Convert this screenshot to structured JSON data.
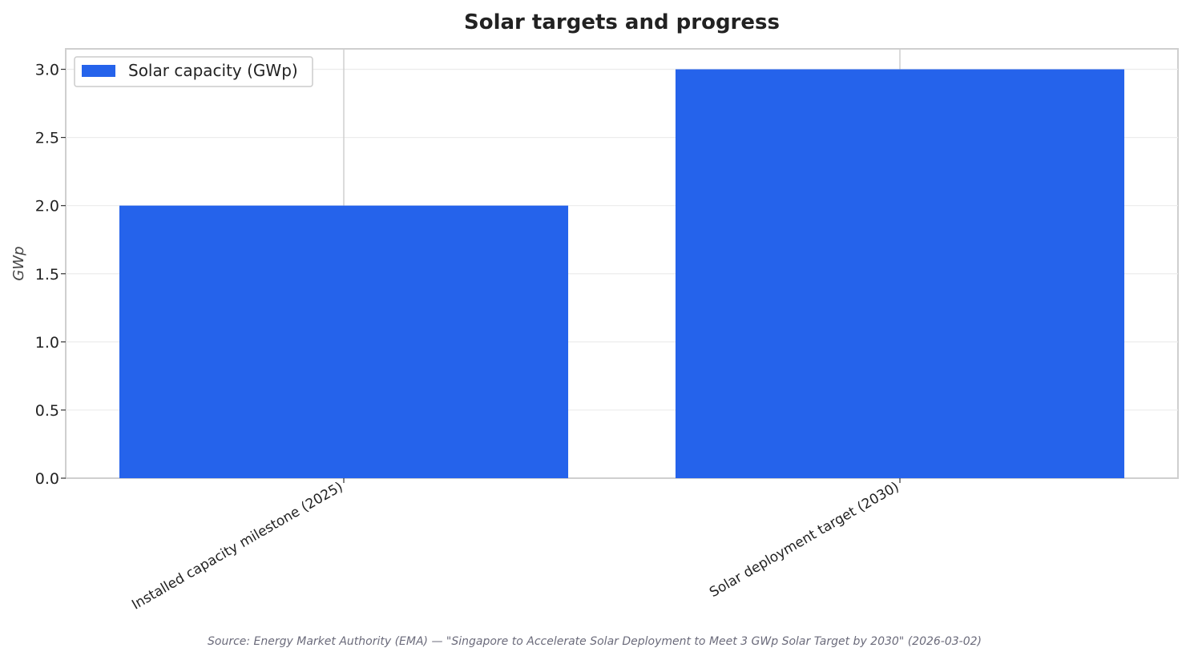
{
  "chart_data": {
    "type": "bar",
    "title": "Solar targets and progress",
    "xlabel": "",
    "ylabel": "GWp",
    "categories": [
      "Installed capacity milestone (2025)",
      "Solar deployment target (2030)"
    ],
    "series": [
      {
        "name": "Solar capacity (GWp)",
        "values": [
          2.0,
          3.0
        ]
      }
    ],
    "ylim": [
      0,
      3.15
    ],
    "yticks": [
      "0.0",
      "0.5",
      "1.0",
      "1.5",
      "2.0",
      "2.5",
      "3.0"
    ],
    "grid": true,
    "legend_position": "top-left",
    "bar_color": "#2563eb",
    "source": "Source: Energy Market Authority (EMA) — \"Singapore to Accelerate Solar Deployment to Meet 3 GWp Solar Target by 2030\" (2026-03-02)"
  }
}
